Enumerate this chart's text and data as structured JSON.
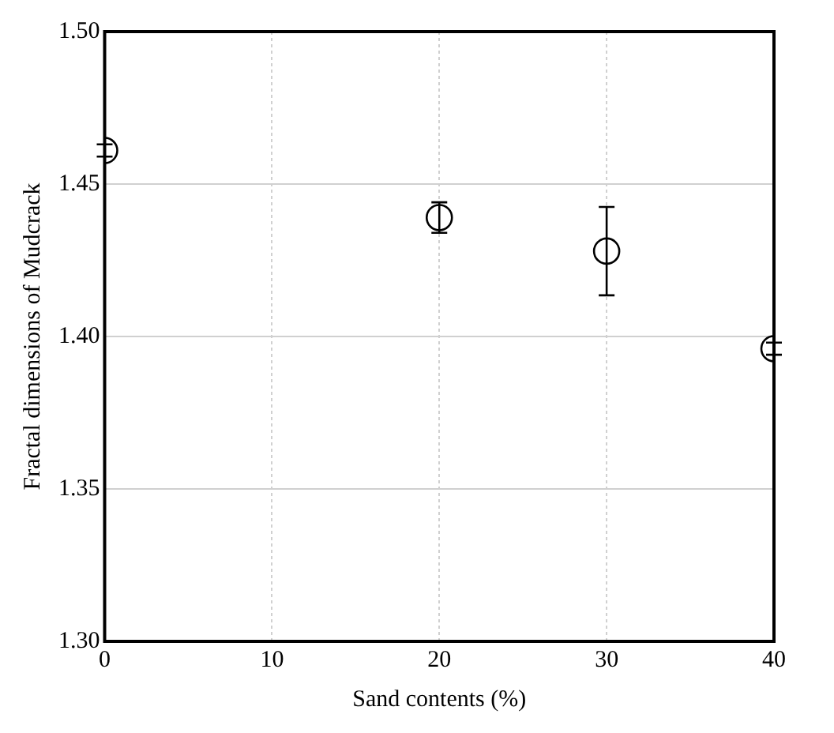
{
  "chart_data": {
    "type": "scatter",
    "xlabel": "Sand contents (%)",
    "ylabel": "Fractal dimensions of Mudcrack",
    "x": [
      0,
      20,
      30,
      40
    ],
    "values": [
      1.461,
      1.439,
      1.428,
      1.396
    ],
    "errors": [
      0.002,
      0.005,
      0.0145,
      0.002
    ],
    "color": "#000000",
    "xlim": [
      0,
      40
    ],
    "xticks": [
      0,
      10,
      20,
      30,
      40
    ],
    "ylim": [
      1.3,
      1.5
    ],
    "yticks": [
      {
        "value": 1.3,
        "label": "1.30"
      },
      {
        "value": 1.35,
        "label": "1.35"
      },
      {
        "value": 1.4,
        "label": "1.40"
      },
      {
        "value": 1.45,
        "label": "1.45"
      },
      {
        "value": 1.5,
        "label": "1.50"
      }
    ],
    "grid": true,
    "marker": "circle",
    "legend": false
  }
}
